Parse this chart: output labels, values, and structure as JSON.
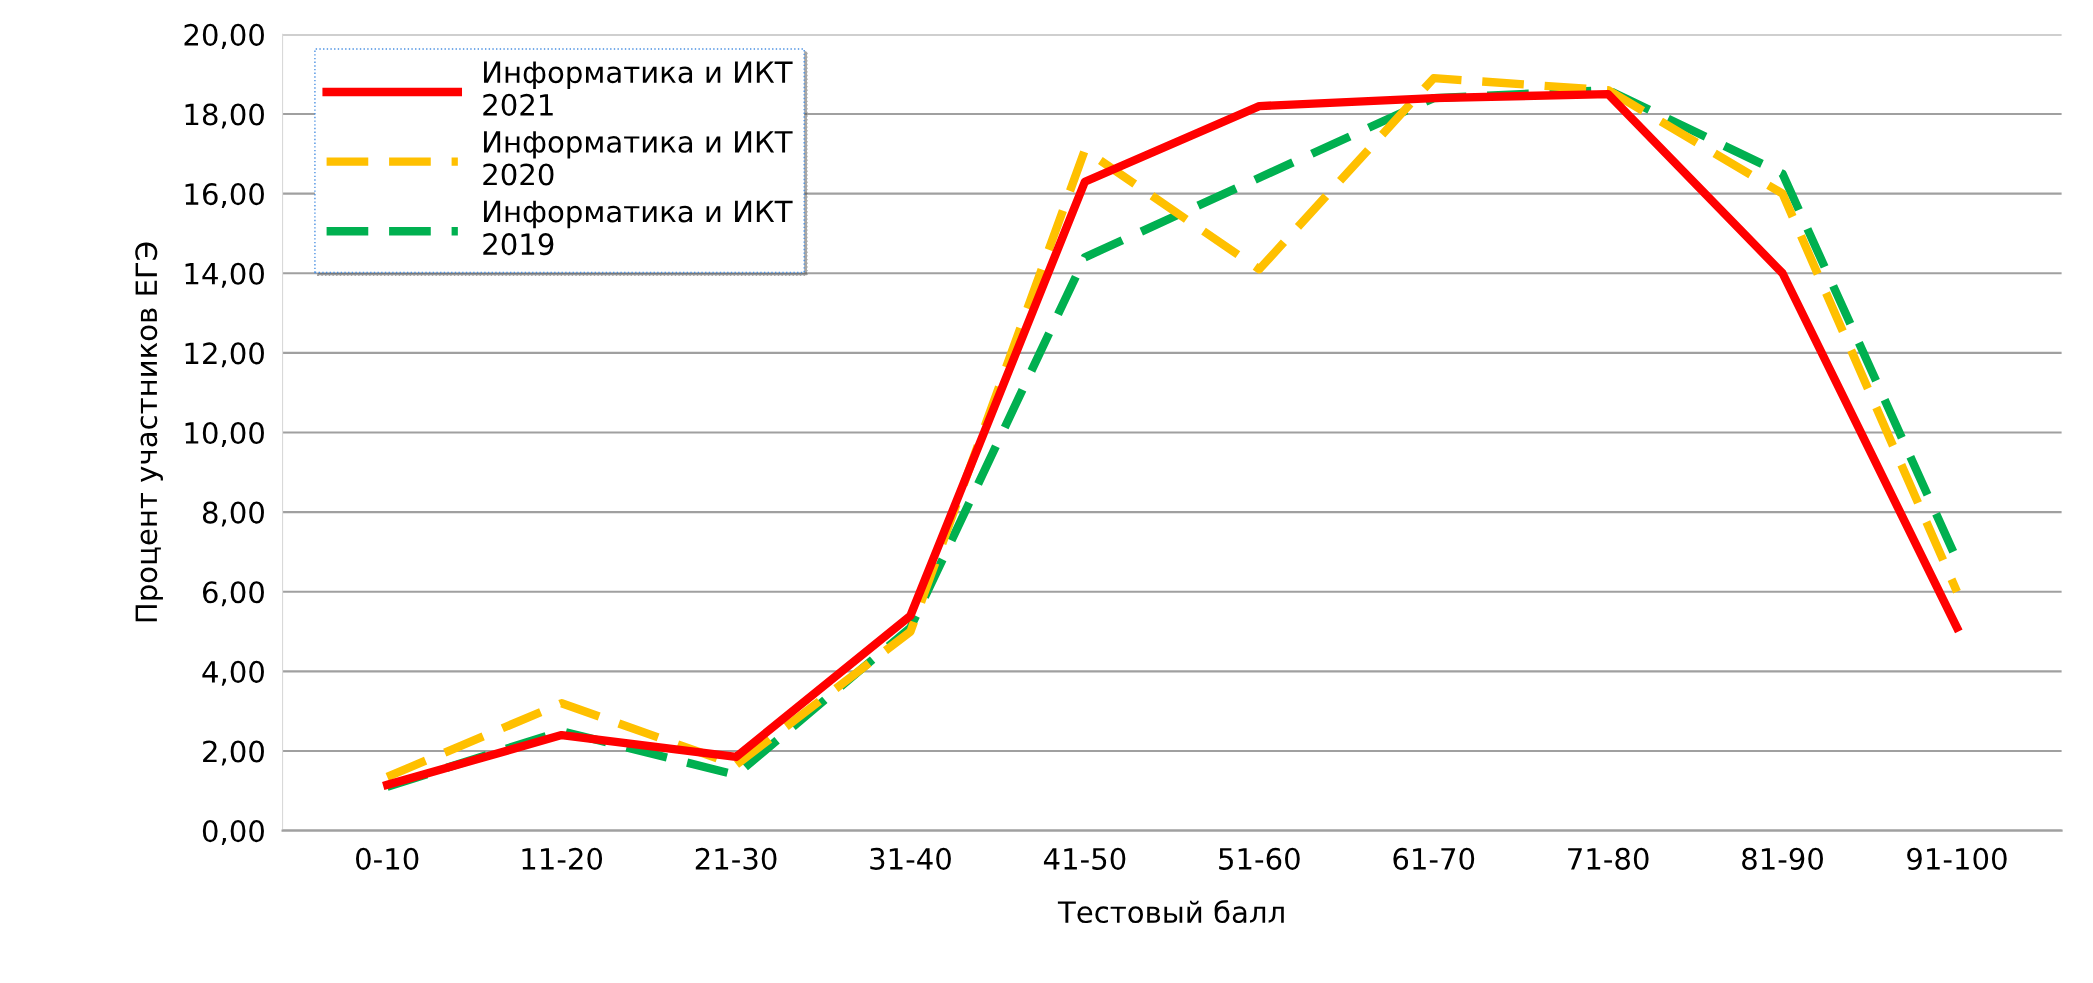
{
  "chart_data": {
    "type": "line",
    "xlabel": "Тестовый балл",
    "ylabel": "Процент участников ЕГЭ",
    "categories": [
      "0-10",
      "11-20",
      "21-30",
      "31-40",
      "41-50",
      "51-60",
      "61-70",
      "71-80",
      "81-90",
      "91-100"
    ],
    "series": [
      {
        "name": "Информатика и ИКТ 2021",
        "color": "#ff0000",
        "line_style": "solid",
        "values": [
          1.15,
          2.4,
          1.85,
          5.4,
          16.3,
          18.2,
          18.4,
          18.5,
          14.0,
          5.1
        ]
      },
      {
        "name": "Информатика и ИКТ 2020",
        "color": "#ffc000",
        "line_style": "dashed",
        "values": [
          1.35,
          3.2,
          1.65,
          5.0,
          17.1,
          14.1,
          18.9,
          18.6,
          16.0,
          6.0
        ]
      },
      {
        "name": "Информатика и ИКТ 2019",
        "color": "#00b050",
        "line_style": "dashed",
        "values": [
          1.1,
          2.5,
          1.4,
          5.1,
          14.4,
          16.4,
          18.4,
          18.6,
          16.5,
          6.8
        ]
      }
    ],
    "ylim": [
      0,
      20
    ],
    "yticks": [
      {
        "value": 0,
        "label": "0,00"
      },
      {
        "value": 2,
        "label": "2,00"
      },
      {
        "value": 4,
        "label": "4,00"
      },
      {
        "value": 6,
        "label": "6,00"
      },
      {
        "value": 8,
        "label": "8,00"
      },
      {
        "value": 10,
        "label": "10,00"
      },
      {
        "value": 12,
        "label": "12,00"
      },
      {
        "value": 14,
        "label": "14,00"
      },
      {
        "value": 16,
        "label": "16,00"
      },
      {
        "value": 18,
        "label": "18,00"
      },
      {
        "value": 20,
        "label": "20,00"
      }
    ],
    "grid": "y",
    "legend": "top left",
    "marker": "none"
  }
}
